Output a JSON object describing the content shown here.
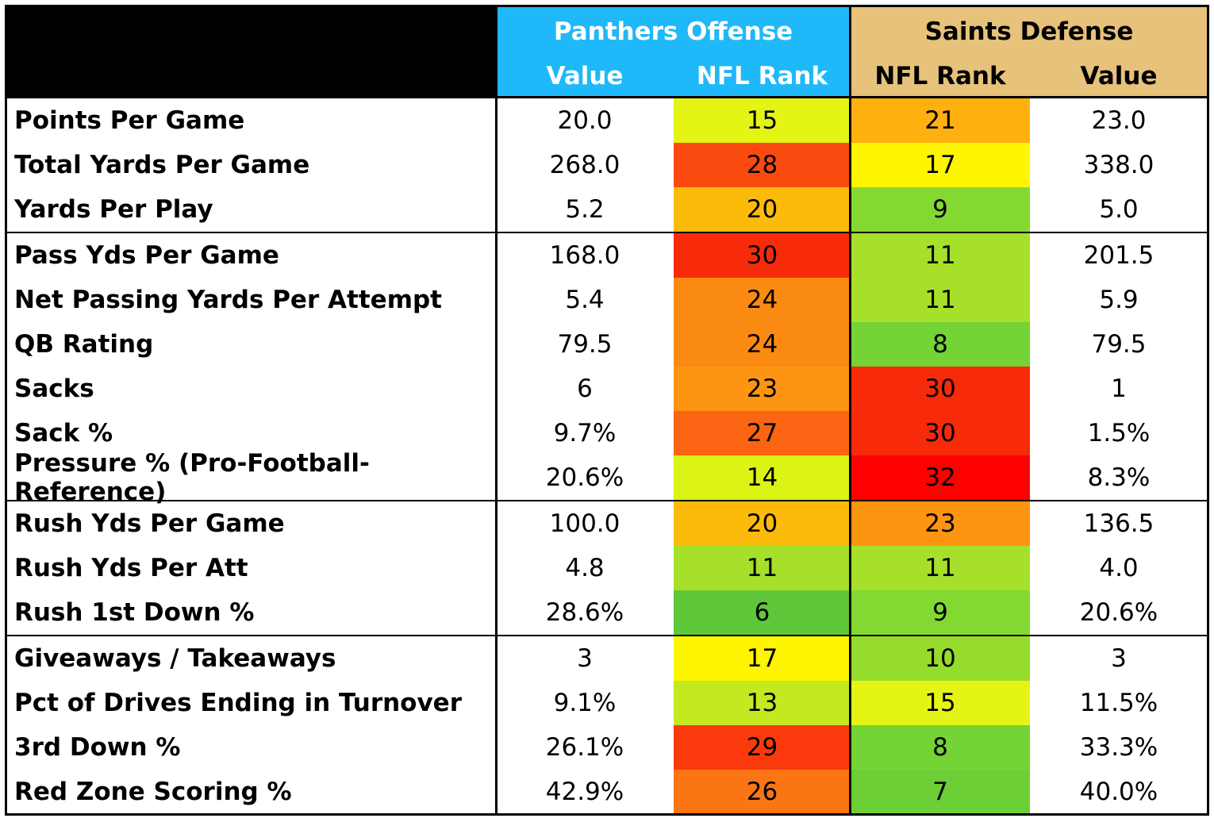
{
  "table": {
    "header": {
      "offense": "Panthers Offense",
      "defense": "Saints Defense",
      "columns": [
        "Value",
        "NFL Rank",
        "NFL Rank",
        "Value"
      ],
      "offense_color": "#1fb8f8",
      "defense_color": "#e6c27a"
    },
    "groups": [
      {
        "rows": [
          {
            "label": "Points Per Game",
            "cells": [
              "20.0",
              "15",
              "21",
              "23.0"
            ],
            "colors": [
              "#e4f515",
              "#fdb00e"
            ]
          },
          {
            "label": "Total Yards Per Game",
            "cells": [
              "268.0",
              "28",
              "17",
              "338.0"
            ],
            "colors": [
              "#fa4a10",
              "#fef500"
            ]
          },
          {
            "label": "Yards Per Play",
            "cells": [
              "5.2",
              "20",
              "9",
              "5.0"
            ],
            "colors": [
              "#fcbb0b",
              "#83d931"
            ]
          }
        ]
      },
      {
        "rows": [
          {
            "label": "Pass Yds Per Game",
            "cells": [
              "168.0",
              "30",
              "11",
              "201.5"
            ],
            "colors": [
              "#f72a09",
              "#a6e02a"
            ]
          },
          {
            "label": "Net Passing Yards Per Attempt",
            "cells": [
              "5.4",
              "24",
              "11",
              "5.9"
            ],
            "colors": [
              "#fb8a12",
              "#a6e02a"
            ]
          },
          {
            "label": "QB Rating",
            "cells": [
              "79.5",
              "24",
              "8",
              "79.5"
            ],
            "colors": [
              "#fb8a12",
              "#74d335"
            ]
          },
          {
            "label": "Sacks",
            "cells": [
              "6",
              "23",
              "30",
              "1"
            ],
            "colors": [
              "#fd9510",
              "#f72a09"
            ]
          },
          {
            "label": "Sack %",
            "cells": [
              "9.7%",
              "27",
              "30",
              "1.5%"
            ],
            "colors": [
              "#fa6412",
              "#f72a09"
            ]
          },
          {
            "label": "Pressure % (Pro-Football-Reference)",
            "cells": [
              "20.6%",
              "14",
              "32",
              "8.3%"
            ],
            "colors": [
              "#dbf416",
              "#ff0000"
            ]
          }
        ]
      },
      {
        "rows": [
          {
            "label": "Rush Yds Per Game",
            "cells": [
              "100.0",
              "20",
              "23",
              "136.5"
            ],
            "colors": [
              "#fcbb0b",
              "#fd9510"
            ]
          },
          {
            "label": "Rush Yds Per Att",
            "cells": [
              "4.8",
              "11",
              "11",
              "4.0"
            ],
            "colors": [
              "#a6e02a",
              "#a6e02a"
            ]
          },
          {
            "label": "Rush 1st Down %",
            "cells": [
              "28.6%",
              "6",
              "9",
              "20.6%"
            ],
            "colors": [
              "#5ec83a",
              "#83d931"
            ]
          }
        ]
      },
      {
        "rows": [
          {
            "label": "Giveaways / Takeaways",
            "cells": [
              "3",
              "17",
              "10",
              "3"
            ],
            "colors": [
              "#fef500",
              "#96dc2c"
            ]
          },
          {
            "label": "Pct of Drives Ending in Turnover",
            "cells": [
              "9.1%",
              "13",
              "15",
              "11.5%"
            ],
            "colors": [
              "#c3ea20",
              "#e4f515"
            ]
          },
          {
            "label": "3rd Down %",
            "cells": [
              "26.1%",
              "29",
              "8",
              "33.3%"
            ],
            "colors": [
              "#fa3a0c",
              "#74d335"
            ]
          },
          {
            "label": "Red Zone Scoring %",
            "cells": [
              "42.9%",
              "26",
              "7",
              "40.0%"
            ],
            "colors": [
              "#fb7514",
              "#6ccf36"
            ]
          }
        ]
      }
    ]
  }
}
